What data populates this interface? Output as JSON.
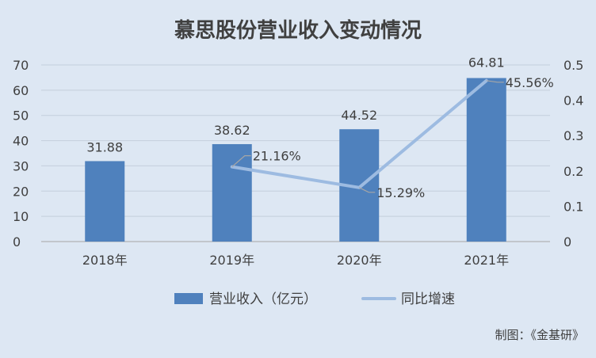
{
  "chart_data": {
    "type": "bar",
    "title": "慕思股份营业收入变动情况",
    "categories": [
      "2018年",
      "2019年",
      "2020年",
      "2021年"
    ],
    "series": [
      {
        "name": "营业收入（亿元）",
        "type": "bar",
        "axis": "left",
        "color": "#4f81bd",
        "values": [
          31.88,
          38.62,
          44.52,
          64.81
        ],
        "labels": [
          "31.88",
          "38.62",
          "44.52",
          "64.81"
        ]
      },
      {
        "name": "同比增速",
        "type": "line",
        "axis": "right",
        "color": "#9dbbe1",
        "values": [
          null,
          0.2116,
          0.1529,
          0.4556
        ],
        "labels": [
          "",
          "21.16%",
          "15.29%",
          "45.56%"
        ]
      }
    ],
    "y_left": {
      "min": 0,
      "max": 70,
      "ticks": [
        "0",
        "10",
        "20",
        "30",
        "40",
        "50",
        "60",
        "70"
      ]
    },
    "y_right": {
      "min": 0,
      "max": 0.5,
      "ticks": [
        "0",
        "0.1",
        "0.2",
        "0.3",
        "0.4",
        "0.5"
      ]
    },
    "grid": true,
    "legend_position": "bottom"
  },
  "source": "制图：《金基研》"
}
